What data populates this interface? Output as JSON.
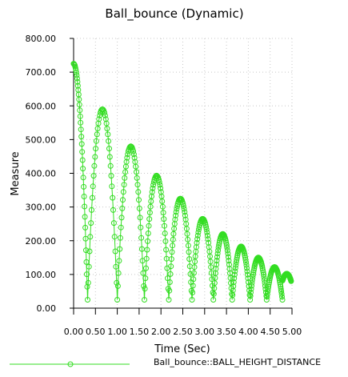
{
  "chart_data": {
    "type": "scatter",
    "title": "Ball_bounce (Dynamic)",
    "xlabel": "Time (Sec)",
    "ylabel": "Measure",
    "xlim": [
      0,
      5
    ],
    "ylim": [
      0,
      800
    ],
    "x_ticks": [
      "0.00",
      "0.50",
      "1.00",
      "1.50",
      "2.00",
      "2.50",
      "3.00",
      "3.50",
      "4.00",
      "4.50",
      "5.00"
    ],
    "y_ticks": [
      "0.00",
      "100.00",
      "200.00",
      "300.00",
      "400.00",
      "500.00",
      "600.00",
      "700.00",
      "800.00"
    ],
    "grid": true,
    "legend_position": "bottom",
    "series": [
      {
        "name": "Ball_bounce::BALL_HEIGHT_DISTANCE",
        "color": "#33dd22",
        "marker": "circle-open",
        "line": true,
        "bounces": [
          {
            "start": 0.0,
            "end": 0.32,
            "peak": 725,
            "peak_time": 0.0,
            "floor": 25
          },
          {
            "start": 0.32,
            "end": 1.0,
            "peak": 590,
            "floor": 25
          },
          {
            "start": 1.0,
            "end": 1.62,
            "peak": 480,
            "floor": 25
          },
          {
            "start": 1.62,
            "end": 2.18,
            "peak": 393,
            "floor": 25
          },
          {
            "start": 2.18,
            "end": 2.71,
            "peak": 325,
            "floor": 25
          },
          {
            "start": 2.71,
            "end": 3.2,
            "peak": 265,
            "floor": 25
          },
          {
            "start": 3.2,
            "end": 3.63,
            "peak": 220,
            "floor": 25
          },
          {
            "start": 3.63,
            "end": 4.04,
            "peak": 183,
            "floor": 25
          },
          {
            "start": 4.04,
            "end": 4.42,
            "peak": 150,
            "floor": 25
          },
          {
            "start": 4.42,
            "end": 4.78,
            "peak": 122,
            "floor": 25
          },
          {
            "start": 4.78,
            "end": 4.98,
            "peak": 102,
            "floor": 80
          }
        ]
      }
    ]
  }
}
